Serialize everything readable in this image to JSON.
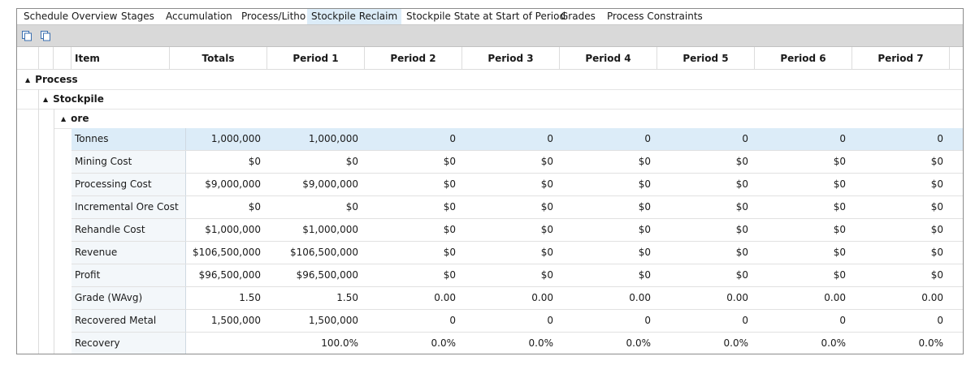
{
  "tabs": [
    {
      "label": "Schedule Overview",
      "active": false
    },
    {
      "label": "Stages",
      "active": false
    },
    {
      "label": "Accumulation",
      "active": false
    },
    {
      "label": "Process/Litho",
      "active": false
    },
    {
      "label": "Stockpile Reclaim",
      "active": true
    },
    {
      "label": "Stockpile State at Start of Period",
      "active": false
    },
    {
      "label": "Grades",
      "active": false
    },
    {
      "label": "Process Constraints",
      "active": false
    }
  ],
  "toolbar": {
    "icons": [
      "copy-icon",
      "copy-icon"
    ]
  },
  "columns": [
    "Item",
    "Totals",
    "Period 1",
    "Period 2",
    "Period 3",
    "Period 4",
    "Period 5",
    "Period 6",
    "Period 7"
  ],
  "groups": {
    "level1": "Process",
    "level2": "Stockpile",
    "level3": "ore"
  },
  "rows": [
    {
      "item": "Tonnes",
      "values": [
        "1,000,000",
        "1,000,000",
        "0",
        "0",
        "0",
        "0",
        "0",
        "0"
      ],
      "selected": true
    },
    {
      "item": "Mining Cost",
      "values": [
        "$0",
        "$0",
        "$0",
        "$0",
        "$0",
        "$0",
        "$0",
        "$0"
      ]
    },
    {
      "item": "Processing Cost",
      "values": [
        "$9,000,000",
        "$9,000,000",
        "$0",
        "$0",
        "$0",
        "$0",
        "$0",
        "$0"
      ]
    },
    {
      "item": "Incremental Ore Cost",
      "values": [
        "$0",
        "$0",
        "$0",
        "$0",
        "$0",
        "$0",
        "$0",
        "$0"
      ]
    },
    {
      "item": "Rehandle Cost",
      "values": [
        "$1,000,000",
        "$1,000,000",
        "$0",
        "$0",
        "$0",
        "$0",
        "$0",
        "$0"
      ]
    },
    {
      "item": "Revenue",
      "values": [
        "$106,500,000",
        "$106,500,000",
        "$0",
        "$0",
        "$0",
        "$0",
        "$0",
        "$0"
      ]
    },
    {
      "item": "Profit",
      "values": [
        "$96,500,000",
        "$96,500,000",
        "$0",
        "$0",
        "$0",
        "$0",
        "$0",
        "$0"
      ]
    },
    {
      "item": "Grade (WAvg)",
      "values": [
        "1.50",
        "1.50",
        "0.00",
        "0.00",
        "0.00",
        "0.00",
        "0.00",
        "0.00"
      ]
    },
    {
      "item": "Recovered Metal",
      "values": [
        "1,500,000",
        "1,500,000",
        "0",
        "0",
        "0",
        "0",
        "0",
        "0"
      ]
    },
    {
      "item": "Recovery",
      "values": [
        "",
        "100.0%",
        "0.0%",
        "0.0%",
        "0.0%",
        "0.0%",
        "0.0%",
        "0.0%"
      ]
    }
  ],
  "colors": {
    "selection": "#dcecf8",
    "toolbar": "#d9d9d9"
  }
}
